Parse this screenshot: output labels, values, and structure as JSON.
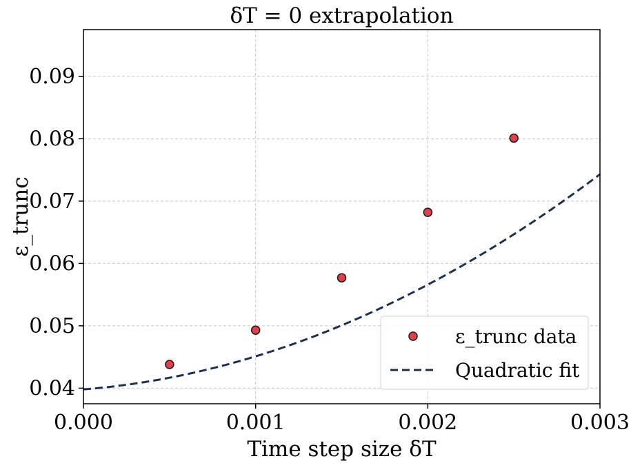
{
  "chart_data": {
    "type": "scatter",
    "title": "δT = 0 extrapolation",
    "xlabel": "Time step size δT",
    "ylabel": "ε_trunc",
    "xlim": [
      0.0,
      0.003
    ],
    "ylim": [
      0.0375,
      0.0975
    ],
    "x_ticks": [
      "0.000",
      "0.001",
      "0.002",
      "0.003"
    ],
    "x_tick_values": [
      0.0,
      0.001,
      0.002,
      0.003
    ],
    "y_ticks": [
      "0.04",
      "0.05",
      "0.06",
      "0.07",
      "0.08",
      "0.09"
    ],
    "y_tick_values": [
      0.04,
      0.05,
      0.06,
      0.07,
      0.08,
      0.09
    ],
    "grid": true,
    "legend_position": "lower-right",
    "series": [
      {
        "name": "ε_trunc data",
        "kind": "scatter",
        "color": "#e0404a",
        "edge_color": "#1a1a1a",
        "x": [
          0.0005,
          0.001,
          0.0015,
          0.002,
          0.0025
        ],
        "y": [
          0.0438,
          0.0493,
          0.0577,
          0.0682,
          0.0801
        ]
      },
      {
        "name": "Quadratic fit",
        "kind": "line",
        "style": "dashed",
        "color": "#1c3050",
        "coefficients": {
          "a": 3100,
          "b": 2.2,
          "c": 0.0398
        }
      }
    ]
  }
}
